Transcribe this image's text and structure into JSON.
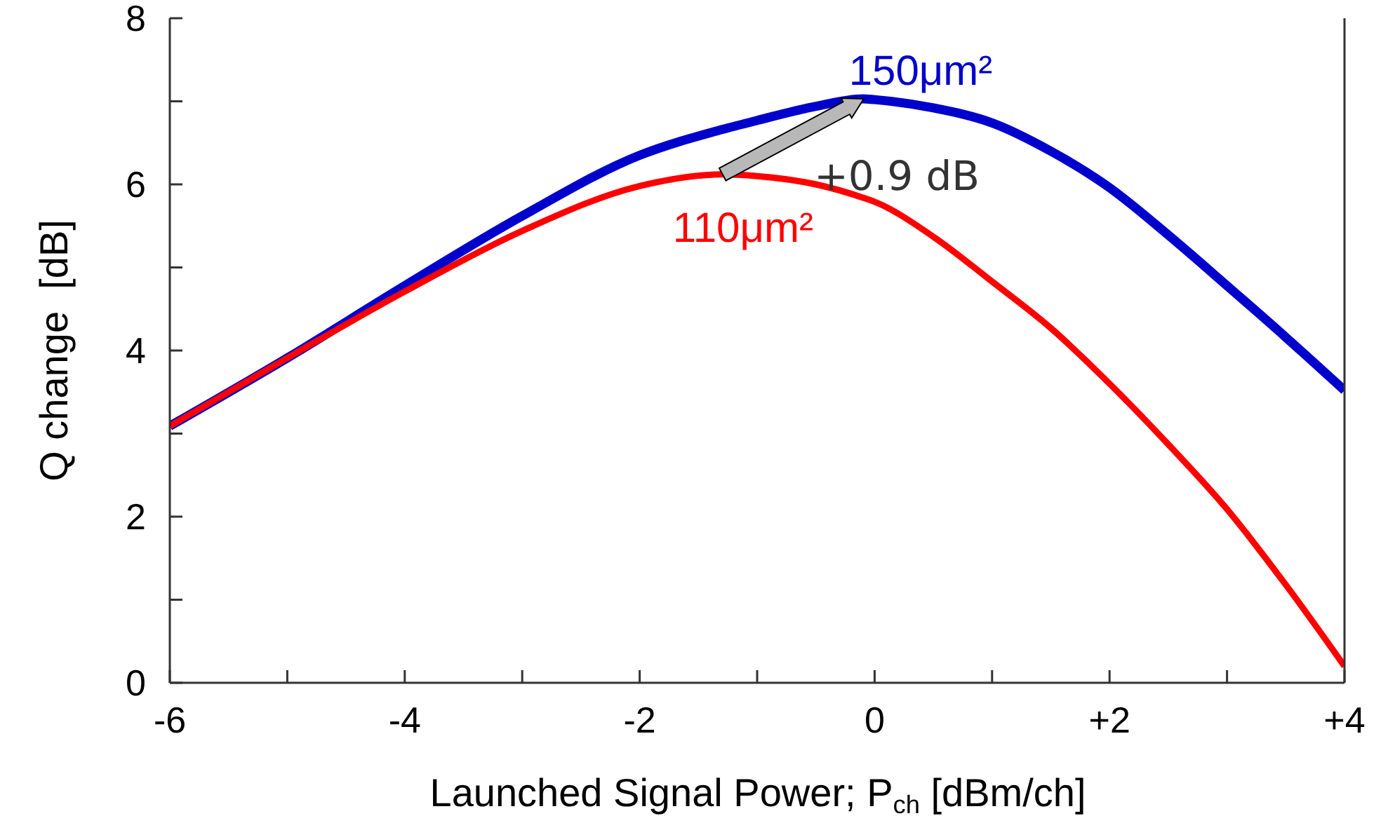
{
  "chart_data": {
    "type": "line",
    "xlabel": "Launched Signal Power; P$_{ch}$  [dBm/ch]",
    "ylabel": "Q change  [dB]",
    "x": [
      -6,
      -5,
      -4,
      -3,
      -2,
      -1.3,
      -1,
      -0.5,
      -0.1,
      0,
      0.5,
      1,
      1.5,
      2,
      2.5,
      3,
      3.5,
      4
    ],
    "series": [
      {
        "name": "150μm²",
        "color": "#0000cc",
        "values": [
          3.09,
          3.91,
          4.78,
          5.62,
          6.35,
          6.66,
          6.77,
          6.94,
          7.03,
          7.02,
          6.92,
          6.74,
          6.4,
          5.96,
          5.39,
          4.78,
          4.16,
          3.52
        ]
      },
      {
        "name": "110μm²",
        "color": "#ff0000",
        "values": [
          3.09,
          3.91,
          4.71,
          5.44,
          5.98,
          6.12,
          6.1,
          6.0,
          5.84,
          5.79,
          5.37,
          4.83,
          4.27,
          3.6,
          2.87,
          2.09,
          1.18,
          0.2
        ]
      }
    ],
    "xlim": [
      -6,
      4
    ],
    "ylim": [
      0,
      8
    ],
    "xticks": [
      -6,
      {
        "value": -5,
        "label": null
      },
      -4,
      {
        "value": -3,
        "label": null
      },
      -2,
      {
        "value": -1,
        "label": null
      },
      0,
      {
        "value": 1,
        "label": null
      },
      {
        "value": 2,
        "label": "+2"
      },
      {
        "value": 3,
        "label": null
      },
      {
        "value": 4,
        "label": "+4"
      }
    ],
    "yticks": [
      0,
      {
        "value": 1,
        "label": null
      },
      2,
      {
        "value": 3,
        "label": null
      },
      4,
      {
        "value": 5,
        "label": null
      },
      6,
      {
        "value": 7,
        "label": null
      },
      8
    ],
    "marker": "none",
    "line_style": "solid",
    "annotations": [
      "+0.9 dB"
    ]
  }
}
